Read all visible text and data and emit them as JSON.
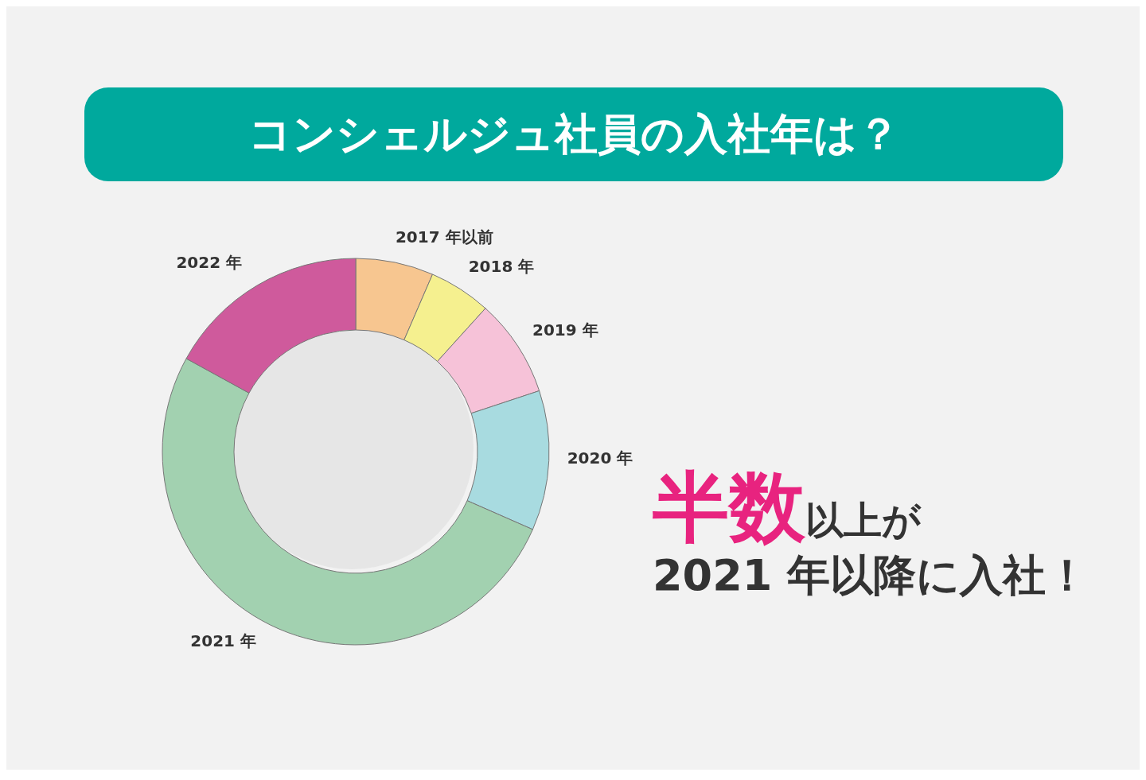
{
  "chart_data": {
    "type": "donut",
    "title": "コンシェルジュ社員の入社年は？",
    "categories": [
      "2017 年以前",
      "2018 年",
      "2019 年",
      "2020 年",
      "2021 年",
      "2022 年"
    ],
    "values": [
      6.5,
      5.2,
      8.2,
      11.7,
      51.4,
      17.0
    ],
    "colors": [
      "#f7c690",
      "#f5f08f",
      "#f6c2d8",
      "#a8dbe0",
      "#a2d1b0",
      "#cf5a9c"
    ],
    "annotations": [
      "半数",
      "以上が",
      "2021 年以降に入社！"
    ]
  }
}
